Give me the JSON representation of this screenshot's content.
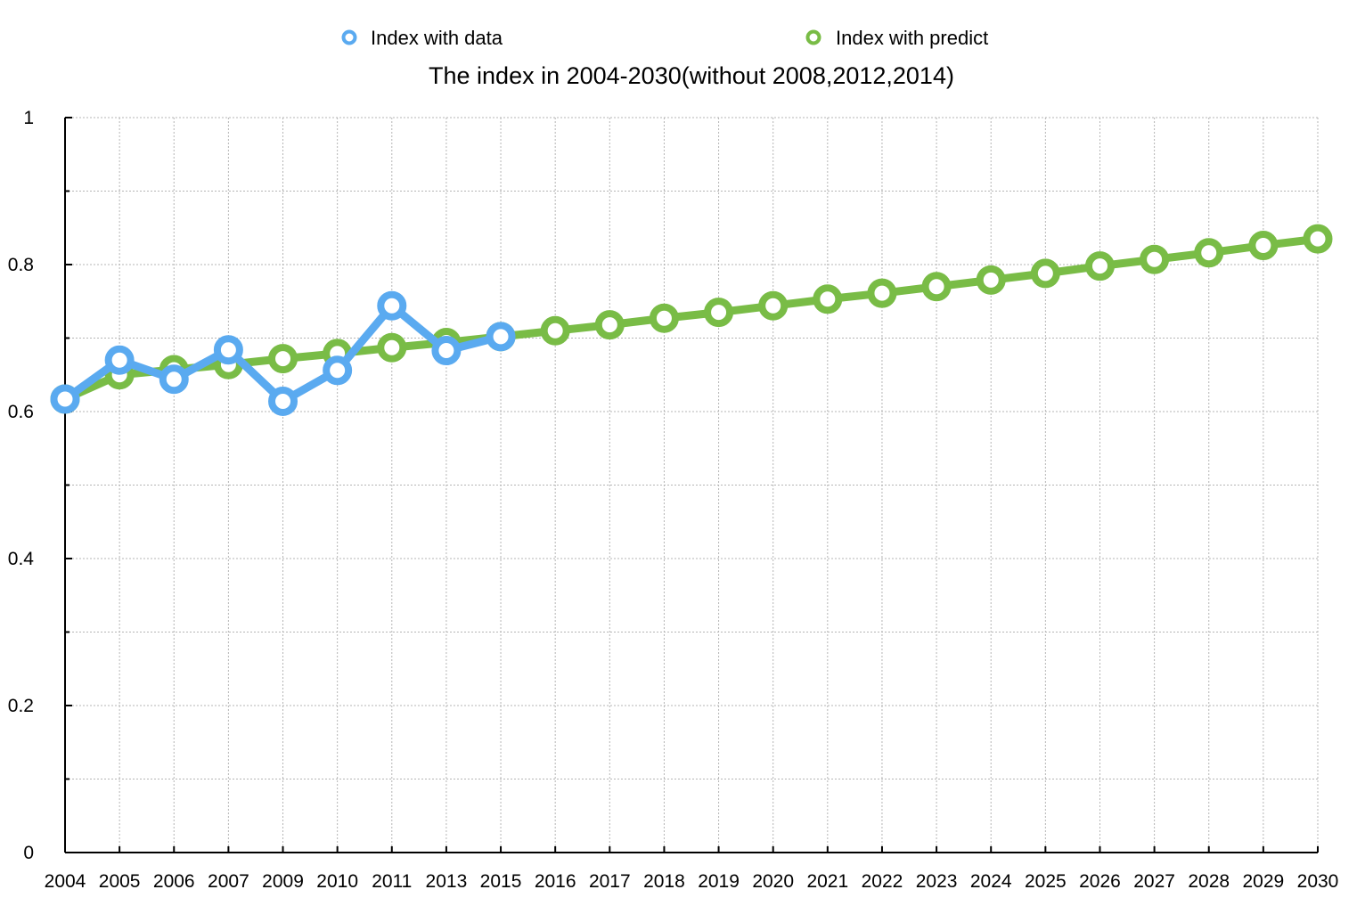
{
  "chart_data": {
    "type": "line",
    "title": "The index in 2004-2030(without 2008,2012,2014)",
    "xlabel": "",
    "ylabel": "",
    "categories": [
      "2004",
      "2005",
      "2006",
      "2007",
      "2009",
      "2010",
      "2011",
      "2013",
      "2015",
      "2016",
      "2017",
      "2018",
      "2019",
      "2020",
      "2021",
      "2022",
      "2023",
      "2024",
      "2025",
      "2026",
      "2027",
      "2028",
      "2029",
      "2030"
    ],
    "ylim": [
      0,
      1
    ],
    "yticks": [
      0,
      0.2,
      0.4,
      0.6,
      0.8,
      1
    ],
    "ytick_labels": [
      "0",
      "0.2",
      "0.4",
      "0.6",
      "0.8",
      "1"
    ],
    "grid": true,
    "legend_position": "top",
    "series": [
      {
        "name": "Index with predict",
        "color": "#79bc46",
        "values": [
          0.617,
          0.65,
          0.657,
          0.664,
          0.672,
          0.679,
          0.687,
          0.694,
          0.702,
          0.71,
          0.718,
          0.727,
          0.735,
          0.744,
          0.753,
          0.761,
          0.77,
          0.779,
          0.788,
          0.798,
          0.807,
          0.816,
          0.826,
          0.835
        ]
      },
      {
        "name": "Index with data",
        "color": "#5aaaf0",
        "values": [
          0.617,
          0.67,
          0.644,
          0.684,
          0.614,
          0.656,
          0.744,
          0.683,
          0.702,
          null,
          null,
          null,
          null,
          null,
          null,
          null,
          null,
          null,
          null,
          null,
          null,
          null,
          null,
          null
        ]
      }
    ],
    "legend": [
      {
        "label": "Index with data",
        "color": "#5aaaf0"
      },
      {
        "label": "Index with predict",
        "color": "#79bc46"
      }
    ]
  }
}
